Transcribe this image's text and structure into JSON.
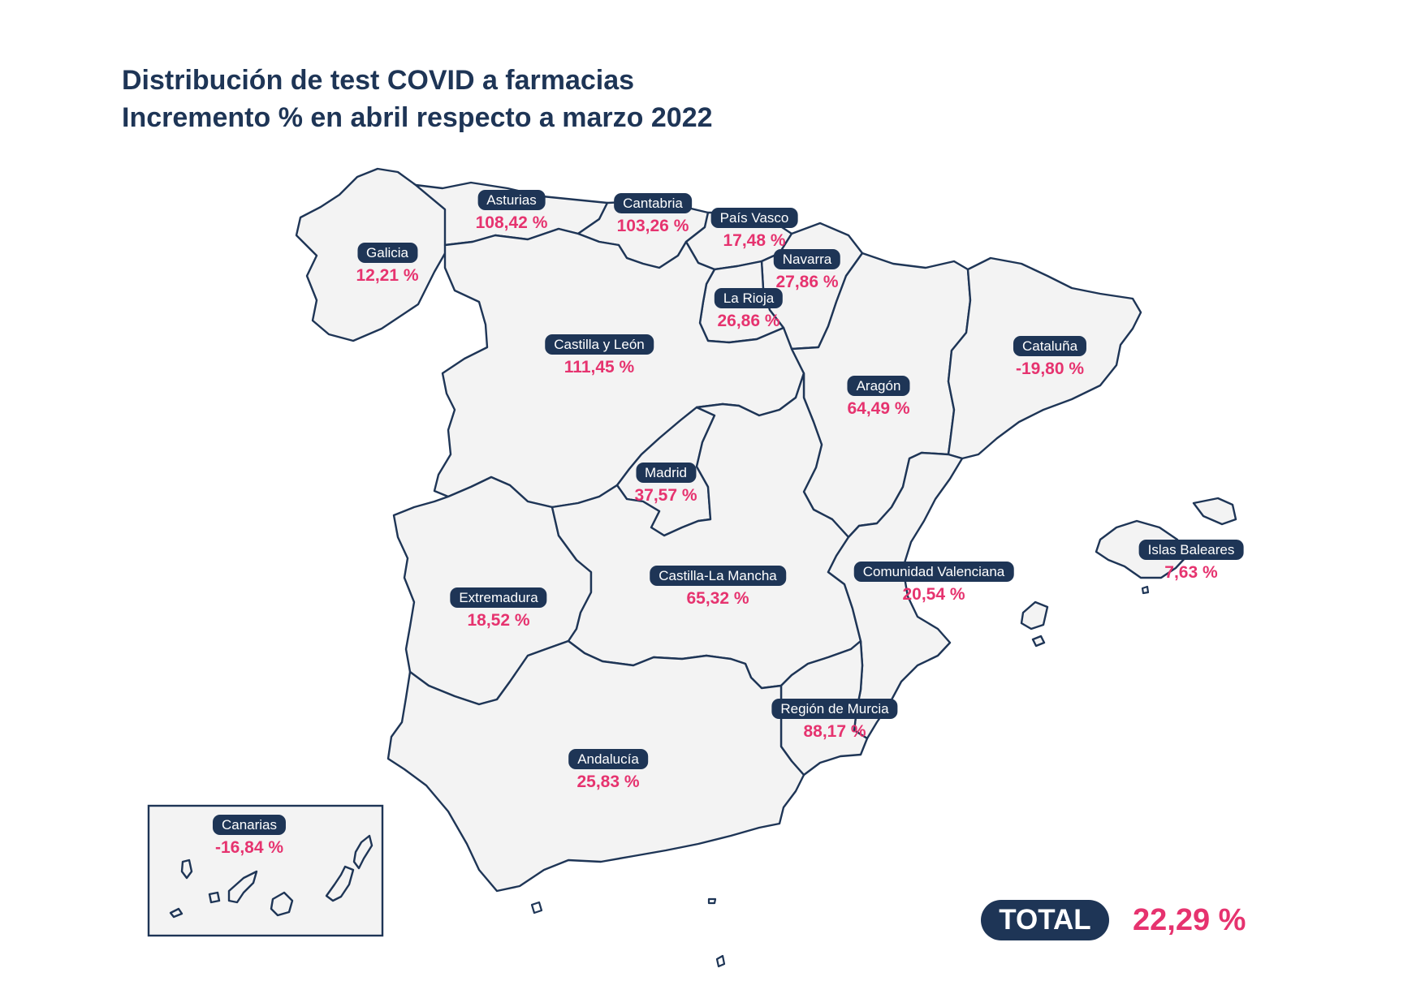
{
  "title_line1": "Distribución de test COVID a farmacias",
  "title_line2": "Incremento % en abril respecto a marzo 2022",
  "colors": {
    "navy": "#1e3556",
    "accent": "#e6336f",
    "land": "#f3f3f3"
  },
  "regions": {
    "galicia": {
      "name": "Galicia",
      "value": "12,21 %"
    },
    "asturias": {
      "name": "Asturias",
      "value": "108,42 %"
    },
    "cantabria": {
      "name": "Cantabria",
      "value": "103,26 %"
    },
    "pais_vasco": {
      "name": "País Vasco",
      "value": "17,48 %"
    },
    "navarra": {
      "name": "Navarra",
      "value": "27,86 %"
    },
    "la_rioja": {
      "name": "La Rioja",
      "value": "26,86 %"
    },
    "castilla_leon": {
      "name": "Castilla y León",
      "value": "111,45 %"
    },
    "aragon": {
      "name": "Aragón",
      "value": "64,49 %"
    },
    "cataluna": {
      "name": "Cataluña",
      "value": "-19,80 %"
    },
    "madrid": {
      "name": "Madrid",
      "value": "37,57 %"
    },
    "extremadura": {
      "name": "Extremadura",
      "value": "18,52 %"
    },
    "castilla_la_mancha": {
      "name": "Castilla-La Mancha",
      "value": "65,32 %"
    },
    "comunidad_valenciana": {
      "name": "Comunidad Valenciana",
      "value": "20,54 %"
    },
    "islas_baleares": {
      "name": "Islas Baleares",
      "value": "7,63 %"
    },
    "murcia": {
      "name": "Región de Murcia",
      "value": "88,17 %"
    },
    "andalucia": {
      "name": "Andalucía",
      "value": "25,83 %"
    },
    "canarias": {
      "name": "Canarias",
      "value": "-16,84 %"
    }
  },
  "total": {
    "label": "TOTAL",
    "value": "22,29 %"
  }
}
